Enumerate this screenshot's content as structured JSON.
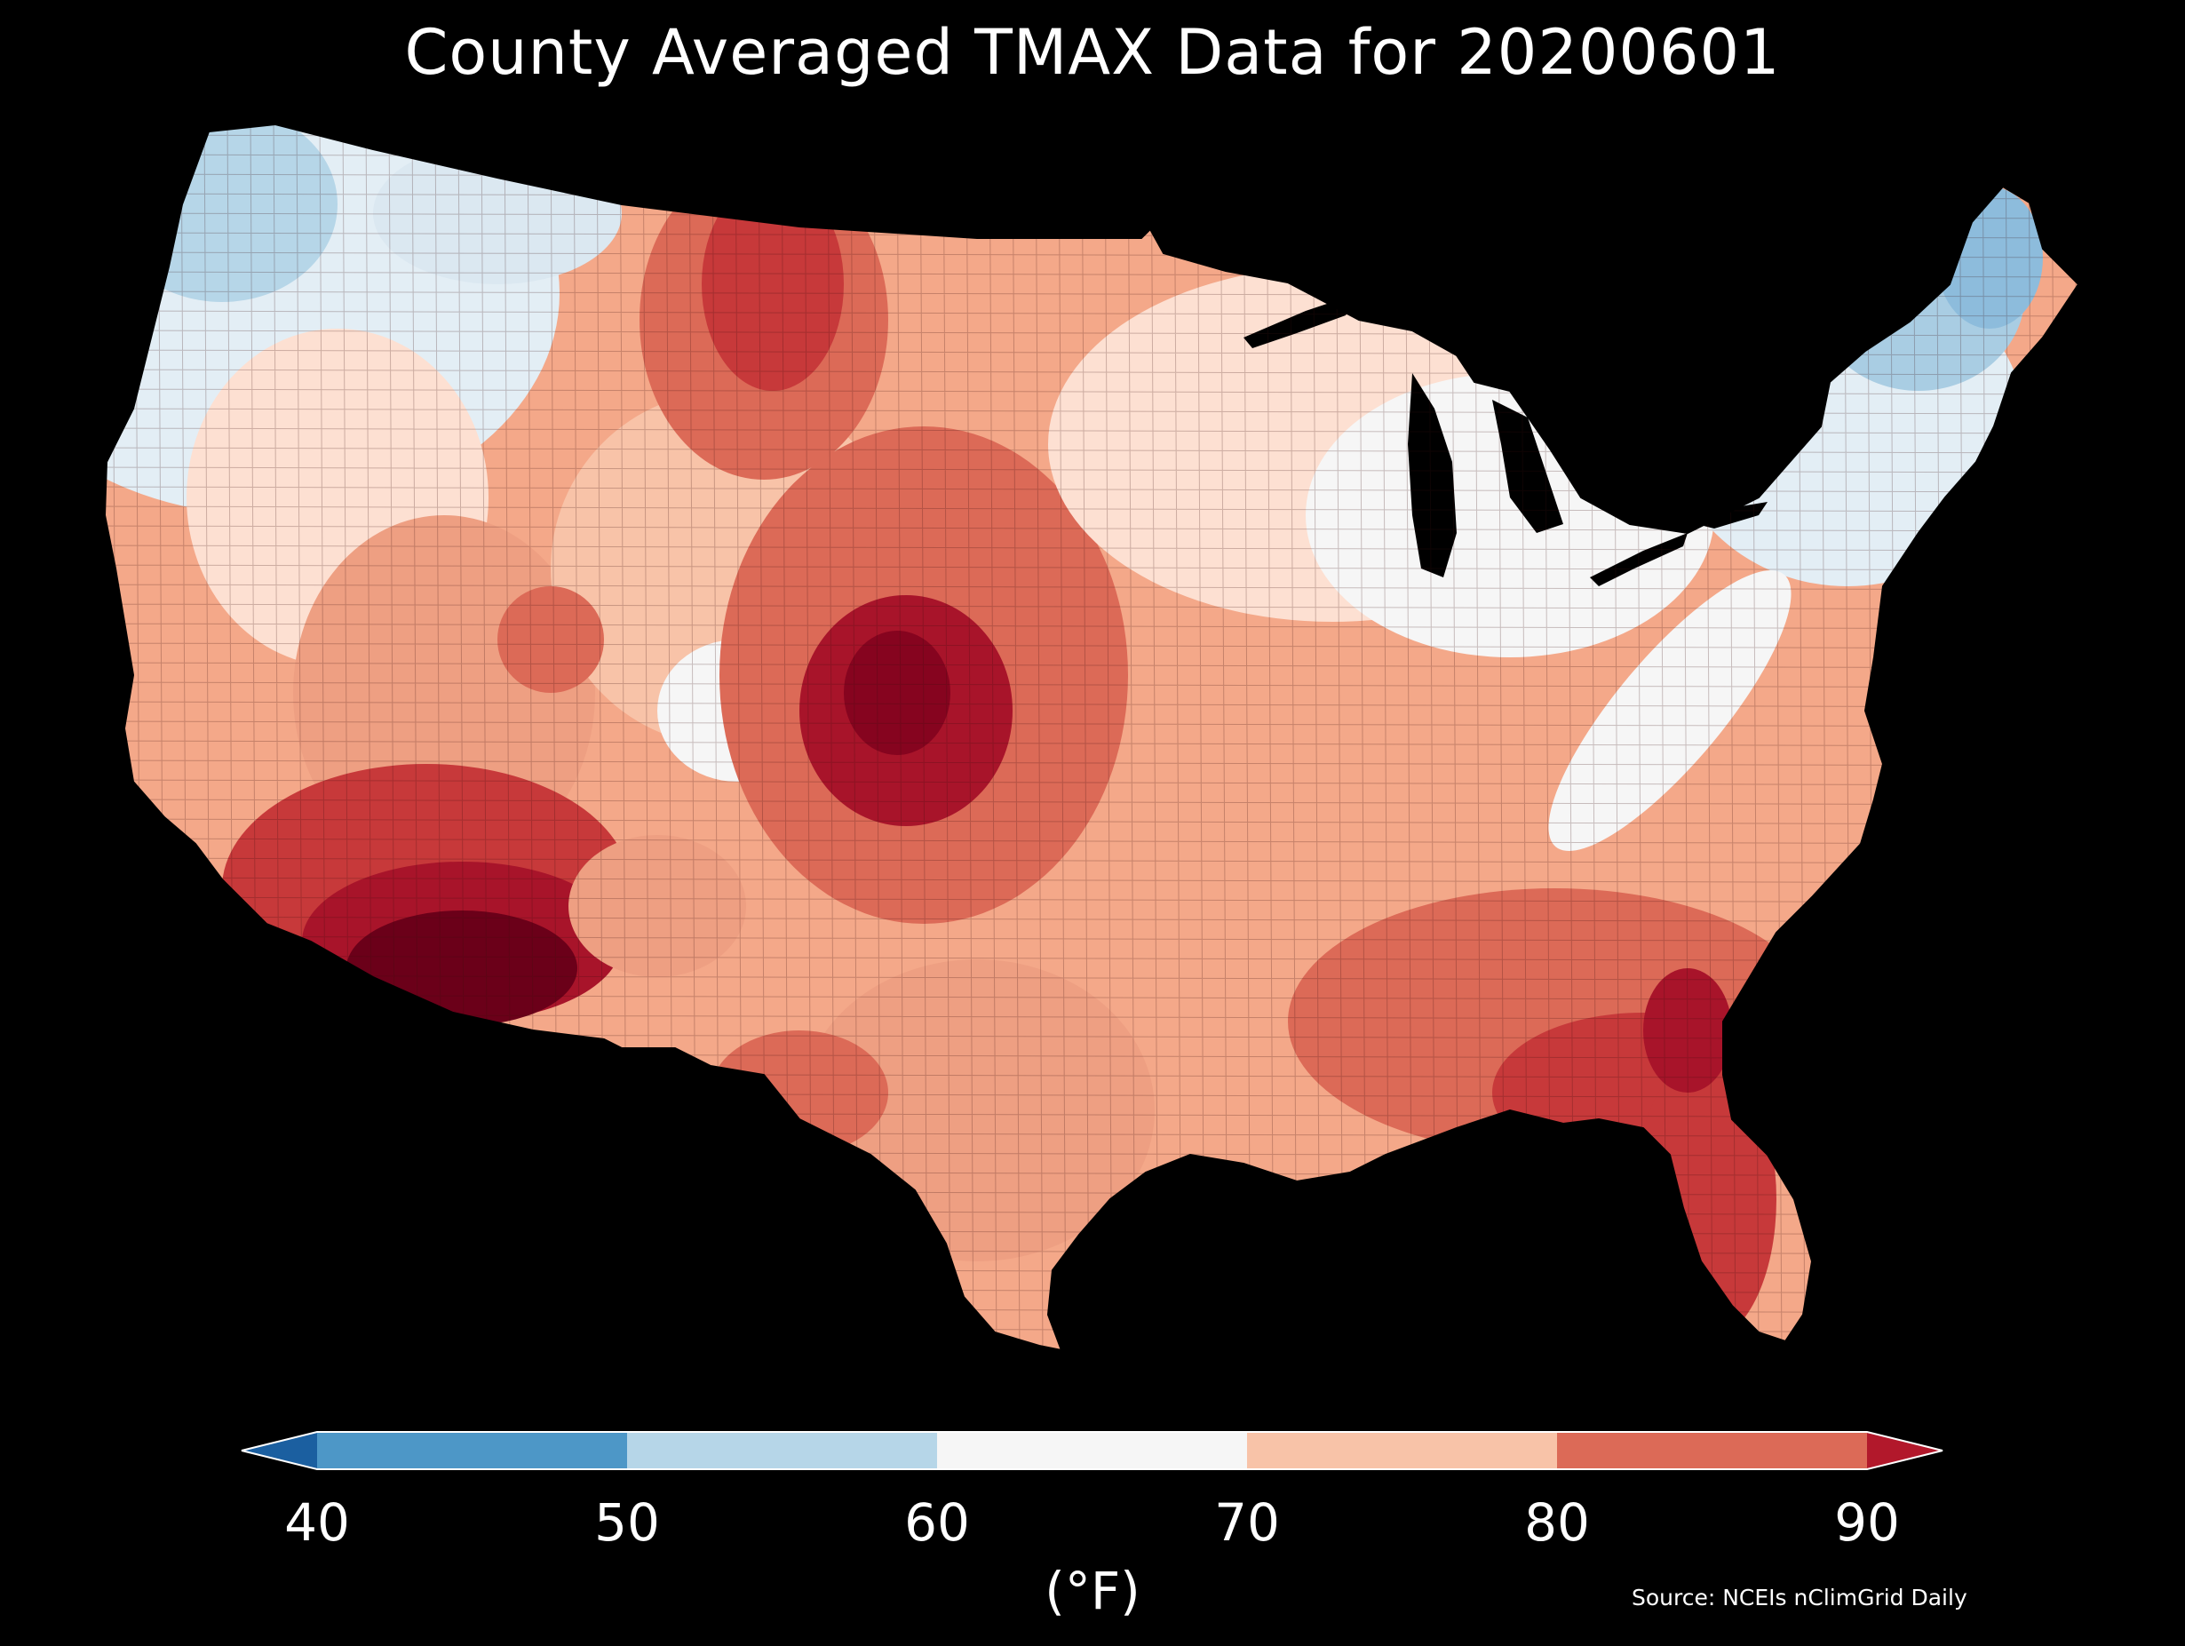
{
  "title": "County Averaged TMAX Data for 20200601",
  "colorbar": {
    "units_label": "(°F)",
    "ticks": [
      "40",
      "50",
      "60",
      "70",
      "80",
      "90"
    ],
    "bins": [
      {
        "from": 40,
        "to": 50,
        "color": "#4d97c7"
      },
      {
        "from": 50,
        "to": 60,
        "color": "#b6d6e8"
      },
      {
        "from": 60,
        "to": 70,
        "color": "#f6f6f6"
      },
      {
        "from": 70,
        "to": 80,
        "color": "#f8c3a8"
      },
      {
        "from": 80,
        "to": 90,
        "color": "#dc6a57"
      }
    ],
    "under_color": "#1b5fa0",
    "over_color": "#b2182b",
    "extend": "both"
  },
  "source": "Source: NCEIs nClimGrid Daily",
  "map": {
    "region": "Contiguous United States",
    "variable": "County averaged daily maximum temperature",
    "background": "#000000",
    "palette": [
      "#2c6fb0",
      "#4d97c7",
      "#a9cde3",
      "#e3eef5",
      "#f6f6f6",
      "#fde0d2",
      "#f8c3a8",
      "#ee9f82",
      "#dc6a57",
      "#c7393a",
      "#a8142a",
      "#6b0019"
    ]
  }
}
